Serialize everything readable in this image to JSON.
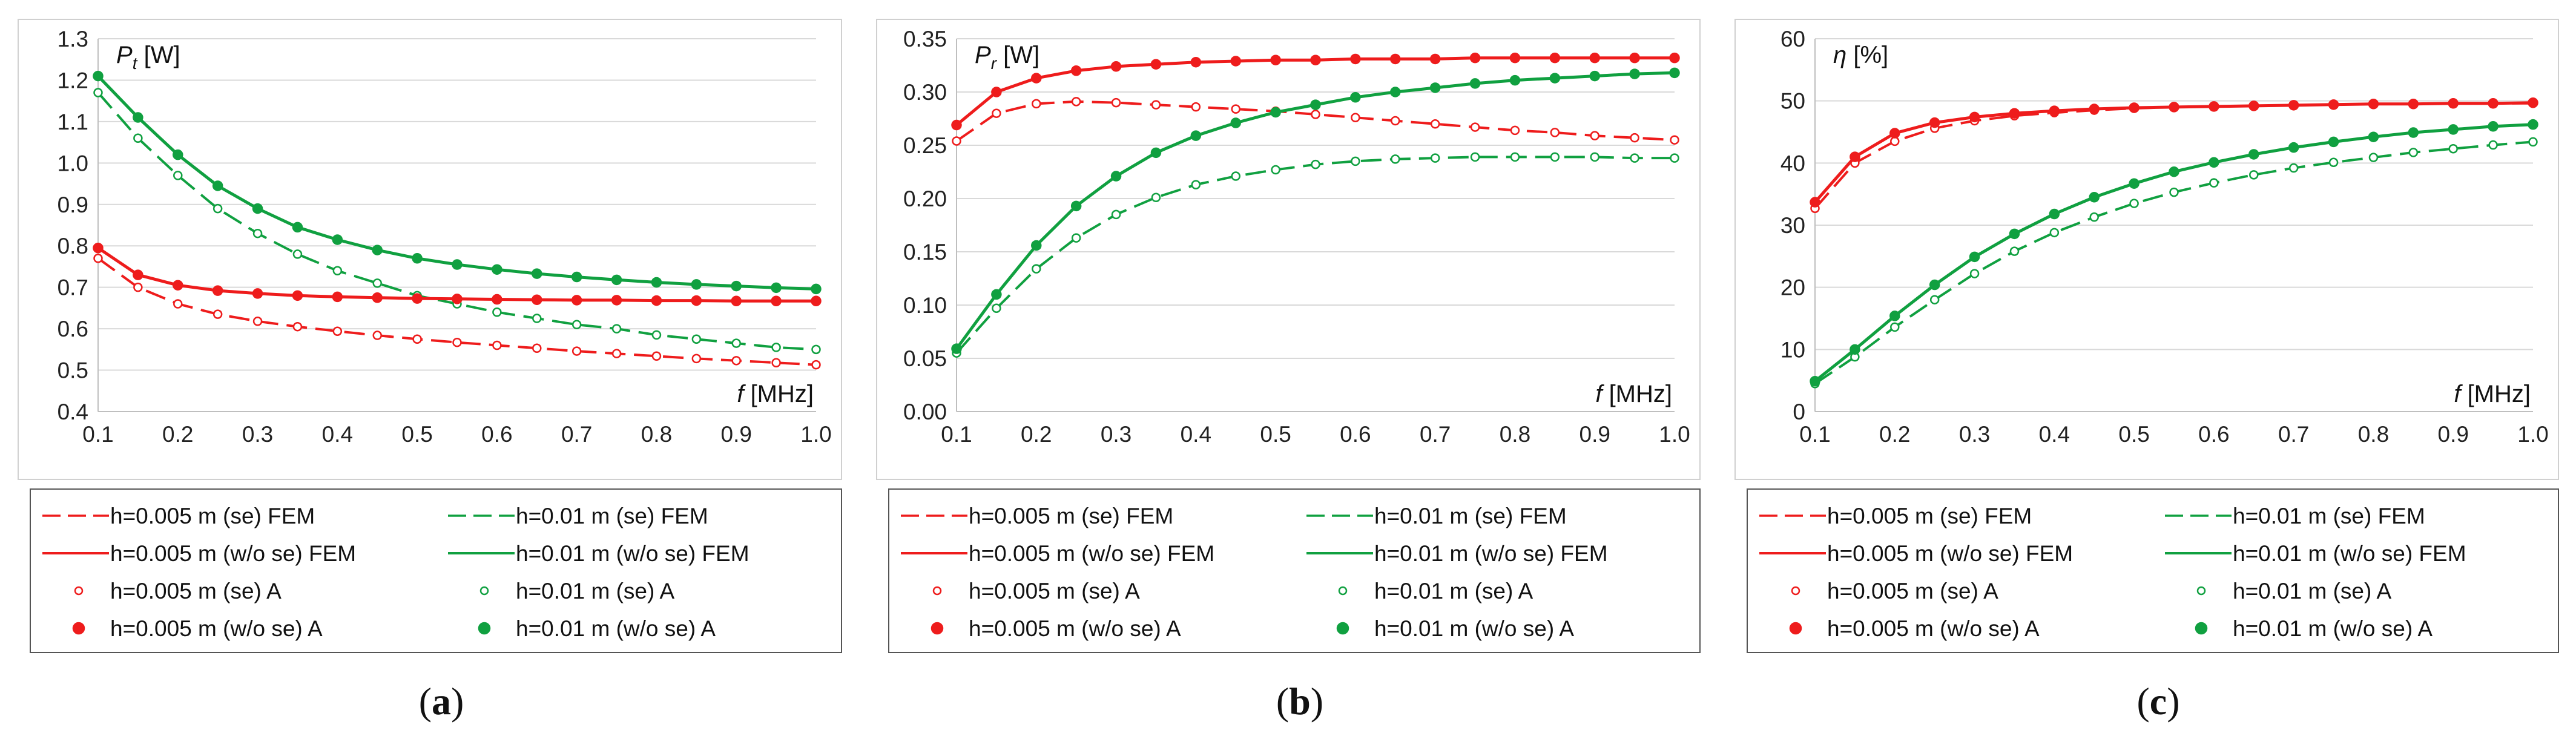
{
  "figure_labels": {
    "a": "(a)",
    "b": "(b)",
    "c": "(c)"
  },
  "legend_labels": [
    "h=0.005 m (se) FEM",
    "h=0.01 m (se) FEM",
    "h=0.005 m (w/o se) FEM",
    "h=0.01 m (w/o se) FEM",
    "h=0.005 m (se) A",
    "h=0.01 m (se) A",
    "h=0.005 m (w/o se) A",
    "h=0.01 m (w/o se) A"
  ],
  "colors": {
    "red": "#ee1c1c",
    "green": "#10a040",
    "grid": "#d9d9d9",
    "axis": "#bfbfbf",
    "frame": "#d0d0d0"
  },
  "chart_data": [
    {
      "id": "a",
      "type": "line",
      "ylabel_symbol": "P",
      "ylabel_sub": "t",
      "ylabel_unit": " [W]",
      "xlabel_symbol": "f",
      "xlabel_unit": " [MHz]",
      "ylim": [
        0.4,
        1.3
      ],
      "ystep": 0.1,
      "ydecimals": 1,
      "yticks": [
        "0.4",
        "0.5",
        "0.6",
        "0.7",
        "0.8",
        "0.9",
        "1.0",
        "1.1",
        "1.2",
        "1.3"
      ],
      "xticks": [
        "0.1",
        "0.2",
        "0.3",
        "0.4",
        "0.5",
        "0.6",
        "0.7",
        "0.8",
        "0.9",
        "1.0"
      ],
      "x": [
        0.1,
        0.15,
        0.2,
        0.25,
        0.3,
        0.35,
        0.4,
        0.45,
        0.5,
        0.55,
        0.6,
        0.65,
        0.7,
        0.75,
        0.8,
        0.85,
        0.9,
        0.95,
        1.0
      ],
      "series": [
        {
          "name": "h=0.005 m (se)",
          "color": "red",
          "dash": true,
          "marker": "open",
          "values": [
            0.77,
            0.7,
            0.66,
            0.635,
            0.618,
            0.605,
            0.594,
            0.584,
            0.575,
            0.567,
            0.56,
            0.553,
            0.546,
            0.54,
            0.534,
            0.528,
            0.523,
            0.518,
            0.513
          ]
        },
        {
          "name": "h=0.01 m (se)",
          "color": "green",
          "dash": true,
          "marker": "open",
          "values": [
            1.17,
            1.06,
            0.97,
            0.89,
            0.83,
            0.78,
            0.74,
            0.71,
            0.68,
            0.66,
            0.64,
            0.625,
            0.61,
            0.6,
            0.585,
            0.575,
            0.565,
            0.555,
            0.55
          ]
        },
        {
          "name": "h=0.005 m (w/o se)",
          "color": "red",
          "dash": false,
          "marker": "filled",
          "values": [
            0.795,
            0.73,
            0.705,
            0.692,
            0.685,
            0.68,
            0.677,
            0.675,
            0.673,
            0.672,
            0.671,
            0.67,
            0.669,
            0.669,
            0.668,
            0.668,
            0.667,
            0.667,
            0.667
          ]
        },
        {
          "name": "h=0.01 m (w/o se)",
          "color": "green",
          "dash": false,
          "marker": "filled",
          "values": [
            1.21,
            1.11,
            1.02,
            0.945,
            0.89,
            0.845,
            0.815,
            0.79,
            0.77,
            0.755,
            0.743,
            0.733,
            0.725,
            0.718,
            0.712,
            0.707,
            0.703,
            0.699,
            0.696
          ]
        }
      ]
    },
    {
      "id": "b",
      "type": "line",
      "ylabel_symbol": "P",
      "ylabel_sub": "r",
      "ylabel_unit": " [W]",
      "xlabel_symbol": "f",
      "xlabel_unit": " [MHz]",
      "ylim": [
        0.0,
        0.35
      ],
      "ystep": 0.05,
      "ydecimals": 2,
      "yticks": [
        "0.00",
        "0.05",
        "0.10",
        "0.15",
        "0.20",
        "0.25",
        "0.30",
        "0.35"
      ],
      "xticks": [
        "0.1",
        "0.2",
        "0.3",
        "0.4",
        "0.5",
        "0.6",
        "0.7",
        "0.8",
        "0.9",
        "1.0"
      ],
      "x": [
        0.1,
        0.15,
        0.2,
        0.25,
        0.3,
        0.35,
        0.4,
        0.45,
        0.5,
        0.55,
        0.6,
        0.65,
        0.7,
        0.75,
        0.8,
        0.85,
        0.9,
        0.95,
        1.0
      ],
      "series": [
        {
          "name": "h=0.005 m (se)",
          "color": "red",
          "dash": true,
          "marker": "open",
          "values": [
            0.254,
            0.28,
            0.289,
            0.291,
            0.29,
            0.288,
            0.286,
            0.284,
            0.282,
            0.279,
            0.276,
            0.273,
            0.27,
            0.267,
            0.264,
            0.262,
            0.259,
            0.257,
            0.255
          ]
        },
        {
          "name": "h=0.01 m (se)",
          "color": "green",
          "dash": true,
          "marker": "open",
          "values": [
            0.055,
            0.097,
            0.134,
            0.163,
            0.185,
            0.201,
            0.213,
            0.221,
            0.227,
            0.232,
            0.235,
            0.237,
            0.238,
            0.239,
            0.239,
            0.239,
            0.239,
            0.238,
            0.238
          ]
        },
        {
          "name": "h=0.005 m (w/o se)",
          "color": "red",
          "dash": false,
          "marker": "filled",
          "values": [
            0.269,
            0.3,
            0.313,
            0.32,
            0.324,
            0.326,
            0.328,
            0.329,
            0.33,
            0.33,
            0.331,
            0.331,
            0.331,
            0.332,
            0.332,
            0.332,
            0.332,
            0.332,
            0.332
          ]
        },
        {
          "name": "h=0.01 m (w/o se)",
          "color": "green",
          "dash": false,
          "marker": "filled",
          "values": [
            0.059,
            0.11,
            0.156,
            0.193,
            0.221,
            0.243,
            0.259,
            0.271,
            0.281,
            0.288,
            0.295,
            0.3,
            0.304,
            0.308,
            0.311,
            0.313,
            0.315,
            0.317,
            0.318
          ]
        }
      ]
    },
    {
      "id": "c",
      "type": "line",
      "ylabel_symbol": "η",
      "ylabel_sub": "",
      "ylabel_unit": " [%]",
      "xlabel_symbol": "f",
      "xlabel_unit": " [MHz]",
      "ylim": [
        0,
        60
      ],
      "ystep": 10,
      "ydecimals": 0,
      "yticks": [
        "0",
        "10",
        "20",
        "30",
        "40",
        "50",
        "60"
      ],
      "xticks": [
        "0.1",
        "0.2",
        "0.3",
        "0.4",
        "0.5",
        "0.6",
        "0.7",
        "0.8",
        "0.9",
        "1.0"
      ],
      "x": [
        0.1,
        0.15,
        0.2,
        0.25,
        0.3,
        0.35,
        0.4,
        0.45,
        0.5,
        0.55,
        0.6,
        0.65,
        0.7,
        0.75,
        0.8,
        0.85,
        0.9,
        0.95,
        1.0
      ],
      "series": [
        {
          "name": "h=0.005 m (se)",
          "color": "red",
          "dash": true,
          "marker": "open",
          "values": [
            32.7,
            40.0,
            43.5,
            45.6,
            46.8,
            47.6,
            48.1,
            48.5,
            48.8,
            49.0,
            49.1,
            49.2,
            49.3,
            49.4,
            49.5,
            49.5,
            49.6,
            49.6,
            49.6
          ]
        },
        {
          "name": "h=0.01 m (se)",
          "color": "green",
          "dash": true,
          "marker": "open",
          "values": [
            4.5,
            8.8,
            13.6,
            18.0,
            22.2,
            25.8,
            28.8,
            31.3,
            33.5,
            35.3,
            36.8,
            38.1,
            39.2,
            40.1,
            40.9,
            41.7,
            42.3,
            42.9,
            43.4
          ]
        },
        {
          "name": "h=0.005 m (w/o se)",
          "color": "red",
          "dash": false,
          "marker": "filled",
          "values": [
            33.7,
            41.0,
            44.8,
            46.5,
            47.4,
            48.0,
            48.4,
            48.7,
            48.9,
            49.0,
            49.1,
            49.2,
            49.3,
            49.4,
            49.5,
            49.5,
            49.6,
            49.6,
            49.7
          ]
        },
        {
          "name": "h=0.01 m (w/o se)",
          "color": "green",
          "dash": false,
          "marker": "filled",
          "values": [
            4.9,
            10.0,
            15.4,
            20.4,
            24.9,
            28.6,
            31.8,
            34.5,
            36.7,
            38.6,
            40.1,
            41.4,
            42.5,
            43.4,
            44.2,
            44.9,
            45.4,
            45.9,
            46.2
          ]
        }
      ]
    }
  ]
}
